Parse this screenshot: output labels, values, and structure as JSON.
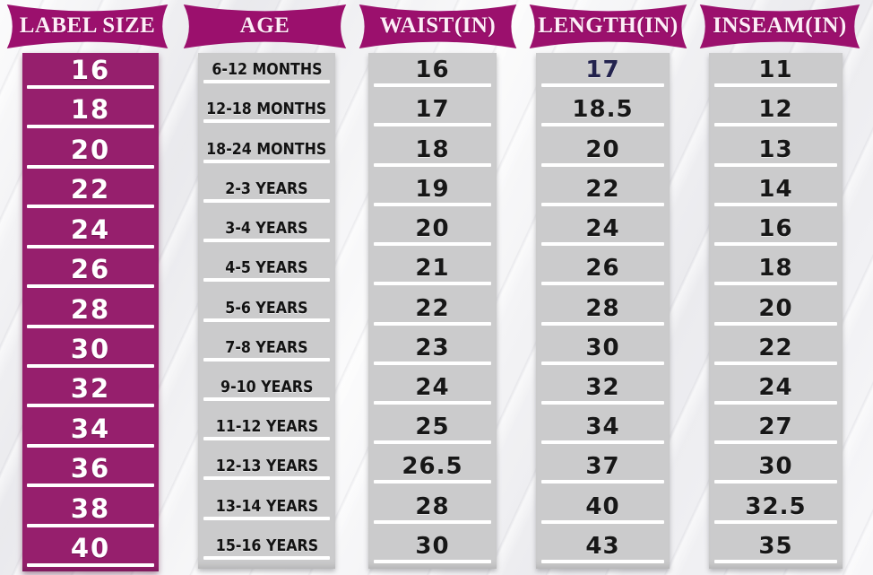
{
  "colors": {
    "ribbon_magenta": "#9b106d",
    "label_column_magenta": "#961f6d",
    "cell_gray": "#cbcbcc",
    "value_text": "#171717",
    "highlight_navy": "#23234e",
    "underline_white": "#ffffff"
  },
  "chart_data": {
    "type": "table",
    "title": "",
    "columns": [
      {
        "id": "label-size",
        "header": "LABEL SIZE",
        "values": [
          "16",
          "18",
          "20",
          "22",
          "24",
          "26",
          "28",
          "30",
          "32",
          "34",
          "36",
          "38",
          "40"
        ]
      },
      {
        "id": "age",
        "header": "AGE",
        "values": [
          "6-12 MONTHS",
          "12-18 MONTHS",
          "18-24 MONTHS",
          "2-3 YEARS",
          "3-4 YEARS",
          "4-5 YEARS",
          "5-6 YEARS",
          "7-8 YEARS",
          "9-10 YEARS",
          "11-12 YEARS",
          "12-13 YEARS",
          "13-14 YEARS",
          "15-16 YEARS"
        ]
      },
      {
        "id": "waist-in",
        "header": "WAIST(IN)",
        "values": [
          "16",
          "17",
          "18",
          "19",
          "20",
          "21",
          "22",
          "23",
          "24",
          "25",
          "26.5",
          "28",
          "30"
        ]
      },
      {
        "id": "length-in",
        "header": "LENGTH(IN)",
        "values": [
          "17",
          "18.5",
          "20",
          "22",
          "24",
          "26",
          "28",
          "30",
          "32",
          "34",
          "37",
          "40",
          "43"
        ]
      },
      {
        "id": "inseam-in",
        "header": "INSEAM(IN)",
        "values": [
          "11",
          "12",
          "13",
          "14",
          "16",
          "18",
          "20",
          "22",
          "24",
          "27",
          "30",
          "32.5",
          "35"
        ]
      }
    ],
    "highlight": {
      "column_index": 3,
      "row": 0,
      "color": "#23234e"
    },
    "layout_hints": {
      "header_style": "magenta banner ribbons",
      "row_separator": "white underline bars",
      "grid": false
    }
  }
}
